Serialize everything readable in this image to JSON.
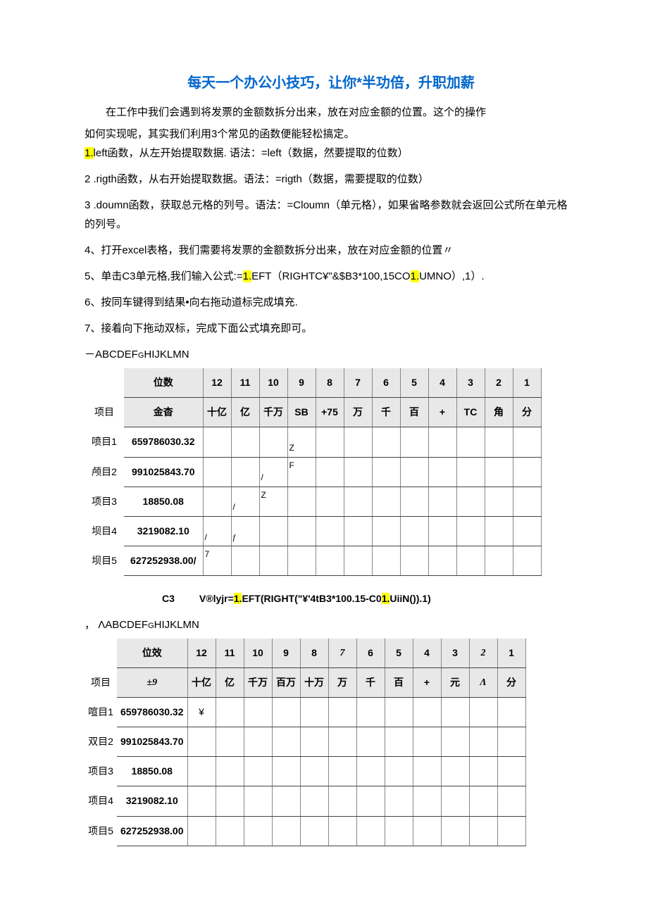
{
  "title": "每天一个办公小技巧，让你*半功倍，升职加薪",
  "intro1": "在工作中我们会遇到将发票的金额数拆分出来，放在对应金额的位置。这个的操作",
  "intro2": "如何实现呢，其实我们利用3个常见的函数便能轻松搞定。",
  "step1a": "1.",
  "step1b": "left函数，从左开始提取数据. 语法：=left（数据，然要提取的位数）",
  "step2": "2 .rigth函数，从右开始提取数据。语法：=rigth（数据，需要提取的位数）",
  "step3": "3 .doumn函数，获取总元格的列号。语法：=Cloumn（单元格），如果省略参数就会返回公式所在单元格的列号。",
  "step4": "4、打开excel表格，我们需要将发票的金额数拆分出来，放在对应金额的位置〃",
  "step5a": "5、单击C3单元格,我们输入公式:=",
  "step5b": "1.",
  "step5c": "EFT（RIGHTC¥\"&$B3*100,15CO",
  "step5d": "1.",
  "step5e": "UMNO）,1）.",
  "step6": "6、按同车键得到结果•向右拖动道标完成填充.",
  "step7": "7、接着向下拖动双标，完成下面公式填充即可。",
  "colhead1": "－ABCDEF",
  "colhead1g": "G",
  "colhead1b": "HIJKLMN",
  "table1": {
    "header1": {
      "c0": "",
      "c1": "位数",
      "cols": [
        "12",
        "11",
        "10",
        "9",
        "8",
        "7",
        "6",
        "5",
        "4",
        "3",
        "2",
        "1"
      ]
    },
    "header2": {
      "c0": "项目",
      "c1": "金杳",
      "cols": [
        "十亿",
        "亿",
        "千万",
        "SB",
        "+75",
        "万",
        "千",
        "百",
        "+",
        "TC",
        "角",
        "分"
      ]
    },
    "rows": [
      {
        "c0": "喷目1",
        "c1": "659786030.32",
        "cells": [
          "",
          "",
          "",
          "Z",
          "",
          "",
          "",
          "",
          "",
          "",
          "",
          ""
        ]
      },
      {
        "c0": "颅目2",
        "c1": "991025843.70",
        "cells": [
          "",
          "",
          "/",
          "F",
          "",
          "",
          "",
          "",
          "",
          "",
          "",
          ""
        ]
      },
      {
        "c0": "项目3",
        "c1": "18850.08",
        "cells": [
          "",
          "/",
          "Z",
          "",
          "",
          "",
          "",
          "",
          "",
          "",
          "",
          ""
        ]
      },
      {
        "c0": "坝目4",
        "c1": "3219082.10",
        "cells": [
          "/",
          "f",
          "",
          "",
          "",
          "",
          "",
          "",
          "",
          "",
          "",
          ""
        ]
      },
      {
        "c0": "坝目5",
        "c1": "627252938.00/",
        "cells": [
          "7",
          "",
          "",
          "",
          "",
          "",
          "",
          "",
          "",
          "",
          "",
          ""
        ]
      }
    ]
  },
  "formula_label": "C3",
  "formula_a": "V®lyjr=",
  "formula_b": "1.",
  "formula_c": "EFT(RIGHT(\"¥'4tB3*100.15-C0",
  "formula_d": "1.",
  "formula_e": "UiiN()).1)",
  "colhead2a": "，",
  "colhead2": "ΛABCDEF",
  "colhead2g": "G",
  "colhead2b": "HIJKLMN",
  "table2": {
    "header1": {
      "c0": "",
      "c1": "位效",
      "cols": [
        "12",
        "11",
        "10",
        "9",
        "8",
        "7",
        "6",
        "5",
        "4",
        "3",
        "2",
        "1"
      ]
    },
    "header2": {
      "c0": "项目",
      "c1": "±9",
      "cols": [
        "十亿",
        "亿",
        "千万",
        "百万",
        "十万",
        "万",
        "千",
        "百",
        "+",
        "元",
        "Λ",
        "分"
      ]
    },
    "rows": [
      {
        "c0": "喧目1",
        "c1": "659786030.32",
        "cells": [
          "¥",
          "",
          "",
          "",
          "",
          "",
          "",
          "",
          "",
          "",
          "",
          ""
        ]
      },
      {
        "c0": "双目2",
        "c1": "991025843.70",
        "cells": [
          "",
          "",
          "",
          "",
          "",
          "",
          "",
          "",
          "",
          "",
          "",
          ""
        ]
      },
      {
        "c0": "项目3",
        "c1": "18850.08",
        "cells": [
          "",
          "",
          "",
          "",
          "",
          "",
          "",
          "",
          "",
          "",
          "",
          ""
        ]
      },
      {
        "c0": "项目4",
        "c1": "3219082.10",
        "cells": [
          "",
          "",
          "",
          "",
          "",
          "",
          "",
          "",
          "",
          "",
          "",
          ""
        ]
      },
      {
        "c0": "项目5",
        "c1": "627252938.00",
        "cells": [
          "",
          "",
          "",
          "",
          "",
          "",
          "",
          "",
          "",
          "",
          "",
          ""
        ]
      }
    ]
  }
}
